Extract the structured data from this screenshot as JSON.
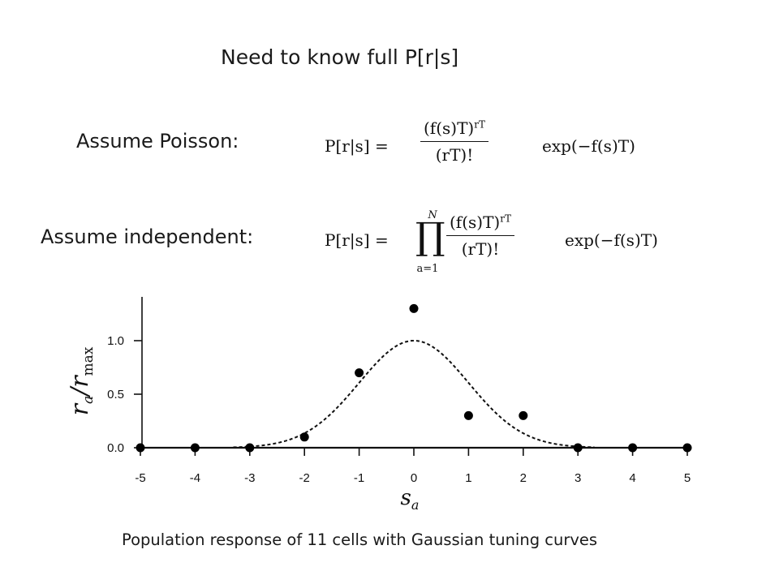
{
  "slide": {
    "title": "Need to know full P[r|s]",
    "poisson_label": "Assume Poisson:",
    "independent_label": "Assume independent:",
    "caption": "Population response of 11 cells with Gaussian tuning curves"
  },
  "equations": {
    "poisson": {
      "lhs": "P[r|s] =",
      "numerator": "(f(s)T)",
      "denominator": "(rT)!",
      "rhs": "exp(−f(s)T)"
    },
    "independent": {
      "lhs": "P[r|s] =",
      "product_upper": "N",
      "product_lower": "a=1",
      "numerator": "(f(s)T)",
      "denominator": "(rT)!",
      "rhs": "exp(−f(s)T)"
    }
  },
  "chart_data": {
    "type": "scatter",
    "xlabel": "s",
    "ylabel": "r/r",
    "xlim": [
      -5,
      5
    ],
    "ylim": [
      0,
      1.35
    ],
    "x_ticks": [
      -5,
      -4,
      -3,
      -2,
      -1,
      0,
      1,
      2,
      3,
      4,
      5
    ],
    "x_tick_labels": [
      "-5",
      "-4",
      "-3",
      "-2",
      "-1",
      "0",
      "1",
      "2",
      "3",
      "4",
      "5"
    ],
    "y_ticks": [
      0,
      0.5,
      1.0
    ],
    "y_tick_labels": [
      "0.0",
      "0.5",
      "1.0"
    ],
    "grid": false,
    "series": [
      {
        "mark": "point",
        "x": [
          -5,
          -4,
          -3,
          -2,
          -1,
          0,
          1,
          2,
          3,
          4,
          5
        ],
        "y": [
          0,
          0,
          0,
          0.1,
          0.7,
          1.3,
          0.3,
          0.3,
          0,
          0,
          0
        ]
      },
      {
        "mark": "dashed-curve",
        "function": "gaussian",
        "mean": 0,
        "sigma": 1,
        "amplitude": 1.0
      }
    ]
  }
}
